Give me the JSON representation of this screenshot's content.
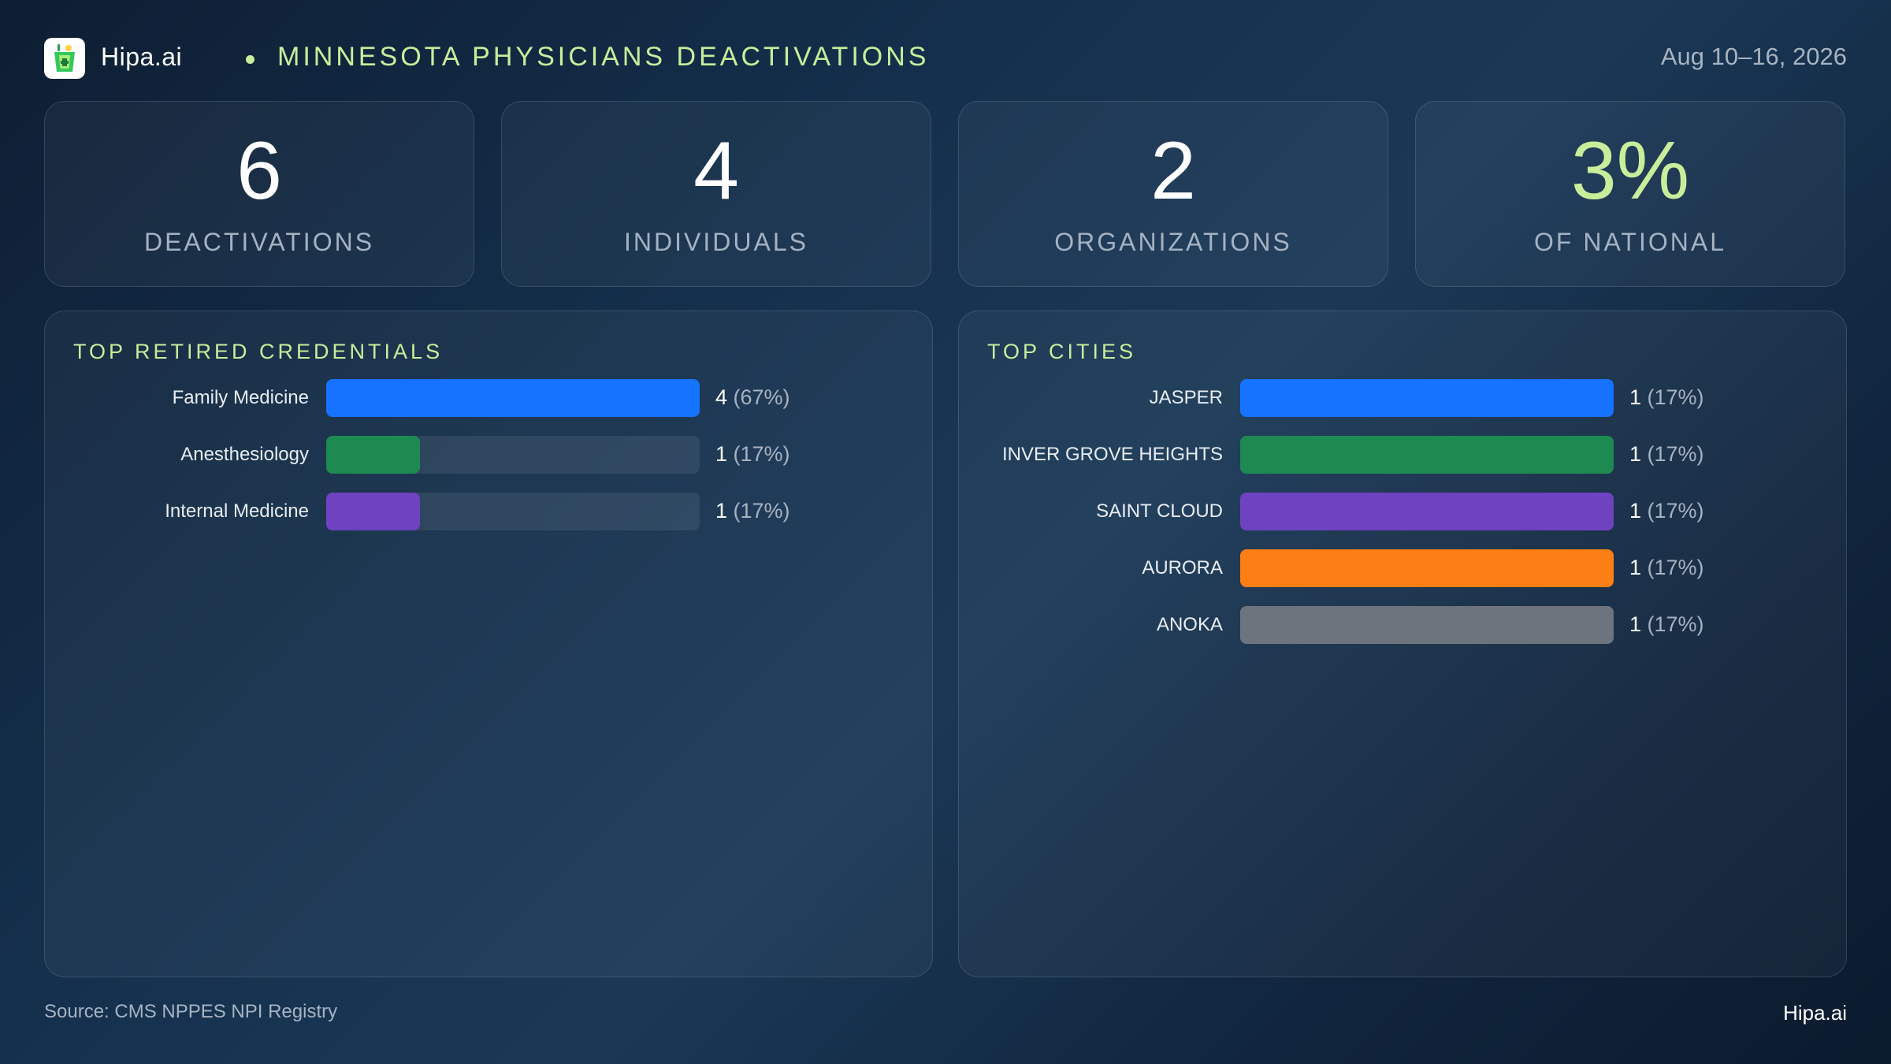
{
  "header": {
    "brand": "Hipa.ai",
    "title": "MINNESOTA PHYSICIANS DEACTIVATIONS",
    "date_range": "Aug 10–16, 2026"
  },
  "kpis": [
    {
      "value": "6",
      "label": "DEACTIVATIONS"
    },
    {
      "value": "4",
      "label": "INDIVIDUALS"
    },
    {
      "value": "2",
      "label": "ORGANIZATIONS"
    },
    {
      "value": "3%",
      "label": "OF NATIONAL"
    }
  ],
  "colors": {
    "accent": "#c8ee9c",
    "blue": "#1673ff",
    "green": "#1d8a52",
    "purple": "#6f42c1",
    "orange": "#fd7e14",
    "gray": "#6c757d"
  },
  "chart_data": [
    {
      "type": "bar",
      "orientation": "horizontal",
      "title": "TOP RETIRED CREDENTIALS",
      "categories": [
        "Family Medicine",
        "Anesthesiology",
        "Internal Medicine"
      ],
      "values": [
        4,
        1,
        1
      ],
      "percents": [
        "(67%)",
        "(17%)",
        "(17%)"
      ],
      "colors": [
        "#1673ff",
        "#1d8a52",
        "#6f42c1"
      ]
    },
    {
      "type": "bar",
      "orientation": "horizontal",
      "title": "TOP CITIES",
      "categories": [
        "JASPER",
        "INVER GROVE HEIGHTS",
        "SAINT CLOUD",
        "AURORA",
        "ANOKA"
      ],
      "values": [
        1,
        1,
        1,
        1,
        1
      ],
      "percents": [
        "(17%)",
        "(17%)",
        "(17%)",
        "(17%)",
        "(17%)"
      ],
      "colors": [
        "#1673ff",
        "#1d8a52",
        "#6f42c1",
        "#fd7e14",
        "#6c757d"
      ]
    }
  ],
  "footer": {
    "source": "Source: CMS NPPES NPI Registry",
    "brand": "Hipa.ai"
  }
}
